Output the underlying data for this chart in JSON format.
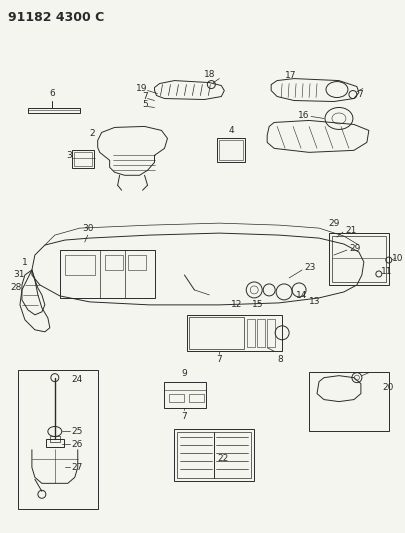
{
  "title": "91182 4300 C",
  "bg_color": "#f5f5f0",
  "fig_width": 4.05,
  "fig_height": 5.33,
  "dpi": 100,
  "line_color": "#2a2a2a",
  "label_fontsize": 6.5,
  "title_fontsize": 9
}
